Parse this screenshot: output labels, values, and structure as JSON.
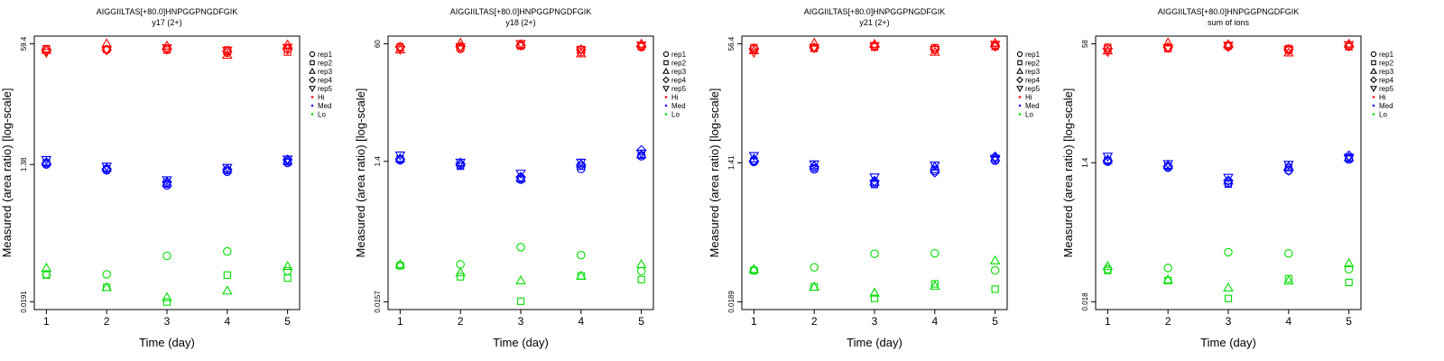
{
  "colors": {
    "Hi": "#ff0000",
    "Med": "#0000ff",
    "Lo": "#00dd00",
    "frame": "#000000"
  },
  "legend": {
    "shapes": [
      {
        "label": "rep1",
        "shape": "circle"
      },
      {
        "label": "rep2",
        "shape": "square"
      },
      {
        "label": "rep3",
        "shape": "triangle-up"
      },
      {
        "label": "rep4",
        "shape": "diamond"
      },
      {
        "label": "rep5",
        "shape": "triangle-down"
      }
    ],
    "colors": [
      {
        "label": "Hi",
        "color": "#ff0000"
      },
      {
        "label": "Med",
        "color": "#0000ff"
      },
      {
        "label": "Lo",
        "color": "#00dd00"
      }
    ]
  },
  "chart_data": [
    {
      "type": "scatter",
      "title": "AIGGIILTAS[+80.0]HNPGGPNGDFGIK",
      "subtitle": "y17 (2+)",
      "xlabel": "Time (day)",
      "ylabel": "Measured (area ratio) [log-scale]",
      "x_ticks": [
        1,
        2,
        3,
        4,
        5
      ],
      "y_ticks": [
        "0.0191",
        "1.38",
        "59.4"
      ],
      "y_scale": "log",
      "ylim": [
        0.0191,
        59.4
      ],
      "series": [
        {
          "level": "Hi",
          "rep": "rep1",
          "x": [
            1,
            2,
            3,
            4,
            5
          ],
          "y": [
            50,
            50,
            51,
            45,
            51
          ]
        },
        {
          "level": "Hi",
          "rep": "rep2",
          "x": [
            1,
            2,
            3,
            4,
            5
          ],
          "y": [
            51,
            50,
            49,
            49,
            46
          ]
        },
        {
          "level": "Hi",
          "rep": "rep3",
          "x": [
            1,
            2,
            3,
            4,
            5
          ],
          "y": [
            49,
            60,
            56,
            42,
            58
          ]
        },
        {
          "level": "Hi",
          "rep": "rep4",
          "x": [
            1,
            2,
            3,
            4,
            5
          ],
          "y": [
            48,
            49,
            50,
            47,
            50
          ]
        },
        {
          "level": "Hi",
          "rep": "rep5",
          "x": [
            1,
            2,
            3,
            4,
            5
          ],
          "y": [
            45,
            49,
            52,
            48,
            53
          ]
        },
        {
          "level": "Med",
          "rep": "rep1",
          "x": [
            1,
            2,
            3,
            4,
            5
          ],
          "y": [
            1.38,
            1.15,
            0.72,
            1.1,
            1.45
          ]
        },
        {
          "level": "Med",
          "rep": "rep2",
          "x": [
            1,
            2,
            3,
            4,
            5
          ],
          "y": [
            1.45,
            1.2,
            0.75,
            1.15,
            1.5
          ]
        },
        {
          "level": "Med",
          "rep": "rep3",
          "x": [
            1,
            2,
            3,
            4,
            5
          ],
          "y": [
            1.5,
            1.25,
            0.78,
            1.2,
            1.55
          ]
        },
        {
          "level": "Med",
          "rep": "rep4",
          "x": [
            1,
            2,
            3,
            4,
            5
          ],
          "y": [
            1.42,
            1.2,
            0.8,
            1.18,
            1.6
          ]
        },
        {
          "level": "Med",
          "rep": "rep5",
          "x": [
            1,
            2,
            3,
            4,
            5
          ],
          "y": [
            1.6,
            1.3,
            0.85,
            1.25,
            1.62
          ]
        },
        {
          "level": "Lo",
          "rep": "rep1",
          "x": [
            1,
            2,
            3,
            4,
            5
          ],
          "y": [
            0.045,
            0.045,
            0.08,
            0.092,
            0.05
          ]
        },
        {
          "level": "Lo",
          "rep": "rep2",
          "x": [
            1,
            2,
            3,
            4,
            5
          ],
          "y": [
            0.044,
            0.03,
            0.019,
            0.044,
            0.04
          ]
        },
        {
          "level": "Lo",
          "rep": "rep3",
          "x": [
            1,
            2,
            3,
            4,
            5
          ],
          "y": [
            0.055,
            0.03,
            0.022,
            0.027,
            0.058
          ]
        }
      ]
    },
    {
      "type": "scatter",
      "title": "AIGGIILTAS[+80.0]HNPGGPNGDFGIK",
      "subtitle": "y18 (2+)",
      "xlabel": "Time (day)",
      "ylabel": "Measured (area ratio) [log-scale]",
      "x_ticks": [
        1,
        2,
        3,
        4,
        5
      ],
      "y_ticks": [
        "0.0157",
        "1.4",
        "60"
      ],
      "y_scale": "log",
      "ylim": [
        0.0157,
        60
      ],
      "series": [
        {
          "level": "Hi",
          "rep": "rep1",
          "x": [
            1,
            2,
            3,
            4,
            5
          ],
          "y": [
            55,
            51,
            58,
            46,
            54
          ]
        },
        {
          "level": "Hi",
          "rep": "rep2",
          "x": [
            1,
            2,
            3,
            4,
            5
          ],
          "y": [
            53,
            53,
            56,
            50,
            55
          ]
        },
        {
          "level": "Hi",
          "rep": "rep3",
          "x": [
            1,
            2,
            3,
            4,
            5
          ],
          "y": [
            50,
            62,
            59,
            44,
            60
          ]
        },
        {
          "level": "Hi",
          "rep": "rep4",
          "x": [
            1,
            2,
            3,
            4,
            5
          ],
          "y": [
            54,
            55,
            57,
            50,
            56
          ]
        },
        {
          "level": "Hi",
          "rep": "rep5",
          "x": [
            1,
            2,
            3,
            4,
            5
          ],
          "y": [
            50,
            54,
            60,
            49,
            57
          ]
        },
        {
          "level": "Med",
          "rep": "rep1",
          "x": [
            1,
            2,
            3,
            4,
            5
          ],
          "y": [
            1.45,
            1.25,
            0.78,
            1.1,
            1.65
          ]
        },
        {
          "level": "Med",
          "rep": "rep2",
          "x": [
            1,
            2,
            3,
            4,
            5
          ],
          "y": [
            1.5,
            1.2,
            0.8,
            1.2,
            1.7
          ]
        },
        {
          "level": "Med",
          "rep": "rep3",
          "x": [
            1,
            2,
            3,
            4,
            5
          ],
          "y": [
            1.55,
            1.35,
            0.82,
            1.3,
            1.75
          ]
        },
        {
          "level": "Med",
          "rep": "rep4",
          "x": [
            1,
            2,
            3,
            4,
            5
          ],
          "y": [
            1.5,
            1.3,
            0.85,
            1.25,
            2.0
          ]
        },
        {
          "level": "Med",
          "rep": "rep5",
          "x": [
            1,
            2,
            3,
            4,
            5
          ],
          "y": [
            1.7,
            1.35,
            0.95,
            1.35,
            1.8
          ]
        },
        {
          "level": "Lo",
          "rep": "rep1",
          "x": [
            1,
            2,
            3,
            4,
            5
          ],
          "y": [
            0.05,
            0.052,
            0.09,
            0.07,
            0.042
          ]
        },
        {
          "level": "Lo",
          "rep": "rep2",
          "x": [
            1,
            2,
            3,
            4,
            5
          ],
          "y": [
            0.05,
            0.035,
            0.016,
            0.036,
            0.032
          ]
        },
        {
          "level": "Lo",
          "rep": "rep3",
          "x": [
            1,
            2,
            3,
            4,
            5
          ],
          "y": [
            0.052,
            0.04,
            0.031,
            0.036,
            0.052
          ]
        }
      ]
    },
    {
      "type": "scatter",
      "title": "AIGGIILTAS[+80.0]HNPGGPNGDFGIK",
      "subtitle": "y21 (2+)",
      "xlabel": "Time (day)",
      "ylabel": "Measured (area ratio) [log-scale]",
      "x_ticks": [
        1,
        2,
        3,
        4,
        5
      ],
      "y_ticks": [
        "0.0189",
        "1.41",
        "56.4"
      ],
      "y_scale": "log",
      "ylim": [
        0.0189,
        56.4
      ],
      "series": [
        {
          "level": "Hi",
          "rep": "rep1",
          "x": [
            1,
            2,
            3,
            4,
            5
          ],
          "y": [
            48,
            50,
            53,
            47,
            54
          ]
        },
        {
          "level": "Hi",
          "rep": "rep2",
          "x": [
            1,
            2,
            3,
            4,
            5
          ],
          "y": [
            50,
            49,
            51,
            50,
            52
          ]
        },
        {
          "level": "Hi",
          "rep": "rep3",
          "x": [
            1,
            2,
            3,
            4,
            5
          ],
          "y": [
            46,
            58,
            56,
            44,
            58
          ]
        },
        {
          "level": "Hi",
          "rep": "rep4",
          "x": [
            1,
            2,
            3,
            4,
            5
          ],
          "y": [
            49,
            50,
            52,
            48,
            52
          ]
        },
        {
          "level": "Hi",
          "rep": "rep5",
          "x": [
            1,
            2,
            3,
            4,
            5
          ],
          "y": [
            43,
            50,
            53,
            47,
            55
          ]
        },
        {
          "level": "Med",
          "rep": "rep1",
          "x": [
            1,
            2,
            3,
            4,
            5
          ],
          "y": [
            1.45,
            1.15,
            0.75,
            1.1,
            1.5
          ]
        },
        {
          "level": "Med",
          "rep": "rep2",
          "x": [
            1,
            2,
            3,
            4,
            5
          ],
          "y": [
            1.5,
            1.2,
            0.72,
            1.15,
            1.55
          ]
        },
        {
          "level": "Med",
          "rep": "rep3",
          "x": [
            1,
            2,
            3,
            4,
            5
          ],
          "y": [
            1.6,
            1.3,
            0.78,
            1.25,
            1.65
          ]
        },
        {
          "level": "Med",
          "rep": "rep4",
          "x": [
            1,
            2,
            3,
            4,
            5
          ],
          "y": [
            1.5,
            1.25,
            0.8,
            1.05,
            1.7
          ]
        },
        {
          "level": "Med",
          "rep": "rep5",
          "x": [
            1,
            2,
            3,
            4,
            5
          ],
          "y": [
            1.75,
            1.35,
            0.9,
            1.3,
            1.6
          ]
        },
        {
          "level": "Lo",
          "rep": "rep1",
          "x": [
            1,
            2,
            3,
            4,
            5
          ],
          "y": [
            0.05,
            0.055,
            0.084,
            0.085,
            0.05
          ]
        },
        {
          "level": "Lo",
          "rep": "rep2",
          "x": [
            1,
            2,
            3,
            4,
            5
          ],
          "y": [
            0.05,
            0.03,
            0.021,
            0.033,
            0.028
          ]
        },
        {
          "level": "Lo",
          "rep": "rep3",
          "x": [
            1,
            2,
            3,
            4,
            5
          ],
          "y": [
            0.052,
            0.03,
            0.025,
            0.031,
            0.068
          ]
        }
      ]
    },
    {
      "type": "scatter",
      "title": "AIGGIILTAS[+80.0]HNPGGPNGDFGIK",
      "subtitle": "sum of ions",
      "xlabel": "Time (day)",
      "ylabel": "Measured (area ratio) [log-scale]",
      "x_ticks": [
        1,
        2,
        3,
        4,
        5
      ],
      "y_ticks": [
        "0.018",
        "1.4",
        "58"
      ],
      "y_scale": "log",
      "ylim": [
        0.018,
        58
      ],
      "series": [
        {
          "level": "Hi",
          "rep": "rep1",
          "x": [
            1,
            2,
            3,
            4,
            5
          ],
          "y": [
            50,
            52,
            55,
            47,
            54
          ]
        },
        {
          "level": "Hi",
          "rep": "rep2",
          "x": [
            1,
            2,
            3,
            4,
            5
          ],
          "y": [
            52,
            50,
            54,
            50,
            53
          ]
        },
        {
          "level": "Hi",
          "rep": "rep3",
          "x": [
            1,
            2,
            3,
            4,
            5
          ],
          "y": [
            47,
            60,
            57,
            44,
            58
          ]
        },
        {
          "level": "Hi",
          "rep": "rep4",
          "x": [
            1,
            2,
            3,
            4,
            5
          ],
          "y": [
            50,
            52,
            53,
            49,
            54
          ]
        },
        {
          "level": "Hi",
          "rep": "rep5",
          "x": [
            1,
            2,
            3,
            4,
            5
          ],
          "y": [
            45,
            51,
            55,
            48,
            56
          ]
        },
        {
          "level": "Med",
          "rep": "rep1",
          "x": [
            1,
            2,
            3,
            4,
            5
          ],
          "y": [
            1.45,
            1.2,
            0.75,
            1.1,
            1.55
          ]
        },
        {
          "level": "Med",
          "rep": "rep2",
          "x": [
            1,
            2,
            3,
            4,
            5
          ],
          "y": [
            1.5,
            1.25,
            0.72,
            1.2,
            1.6
          ]
        },
        {
          "level": "Med",
          "rep": "rep3",
          "x": [
            1,
            2,
            3,
            4,
            5
          ],
          "y": [
            1.55,
            1.3,
            0.8,
            1.25,
            1.65
          ]
        },
        {
          "level": "Med",
          "rep": "rep4",
          "x": [
            1,
            2,
            3,
            4,
            5
          ],
          "y": [
            1.5,
            1.25,
            0.8,
            1.1,
            1.75
          ]
        },
        {
          "level": "Med",
          "rep": "rep5",
          "x": [
            1,
            2,
            3,
            4,
            5
          ],
          "y": [
            1.7,
            1.35,
            0.88,
            1.32,
            1.65
          ]
        },
        {
          "level": "Lo",
          "rep": "rep1",
          "x": [
            1,
            2,
            3,
            4,
            5
          ],
          "y": [
            0.05,
            0.052,
            0.085,
            0.082,
            0.05
          ]
        },
        {
          "level": "Lo",
          "rep": "rep2",
          "x": [
            1,
            2,
            3,
            4,
            5
          ],
          "y": [
            0.048,
            0.035,
            0.02,
            0.037,
            0.033
          ]
        },
        {
          "level": "Lo",
          "rep": "rep3",
          "x": [
            1,
            2,
            3,
            4,
            5
          ],
          "y": [
            0.055,
            0.036,
            0.028,
            0.035,
            0.06
          ]
        }
      ]
    }
  ]
}
